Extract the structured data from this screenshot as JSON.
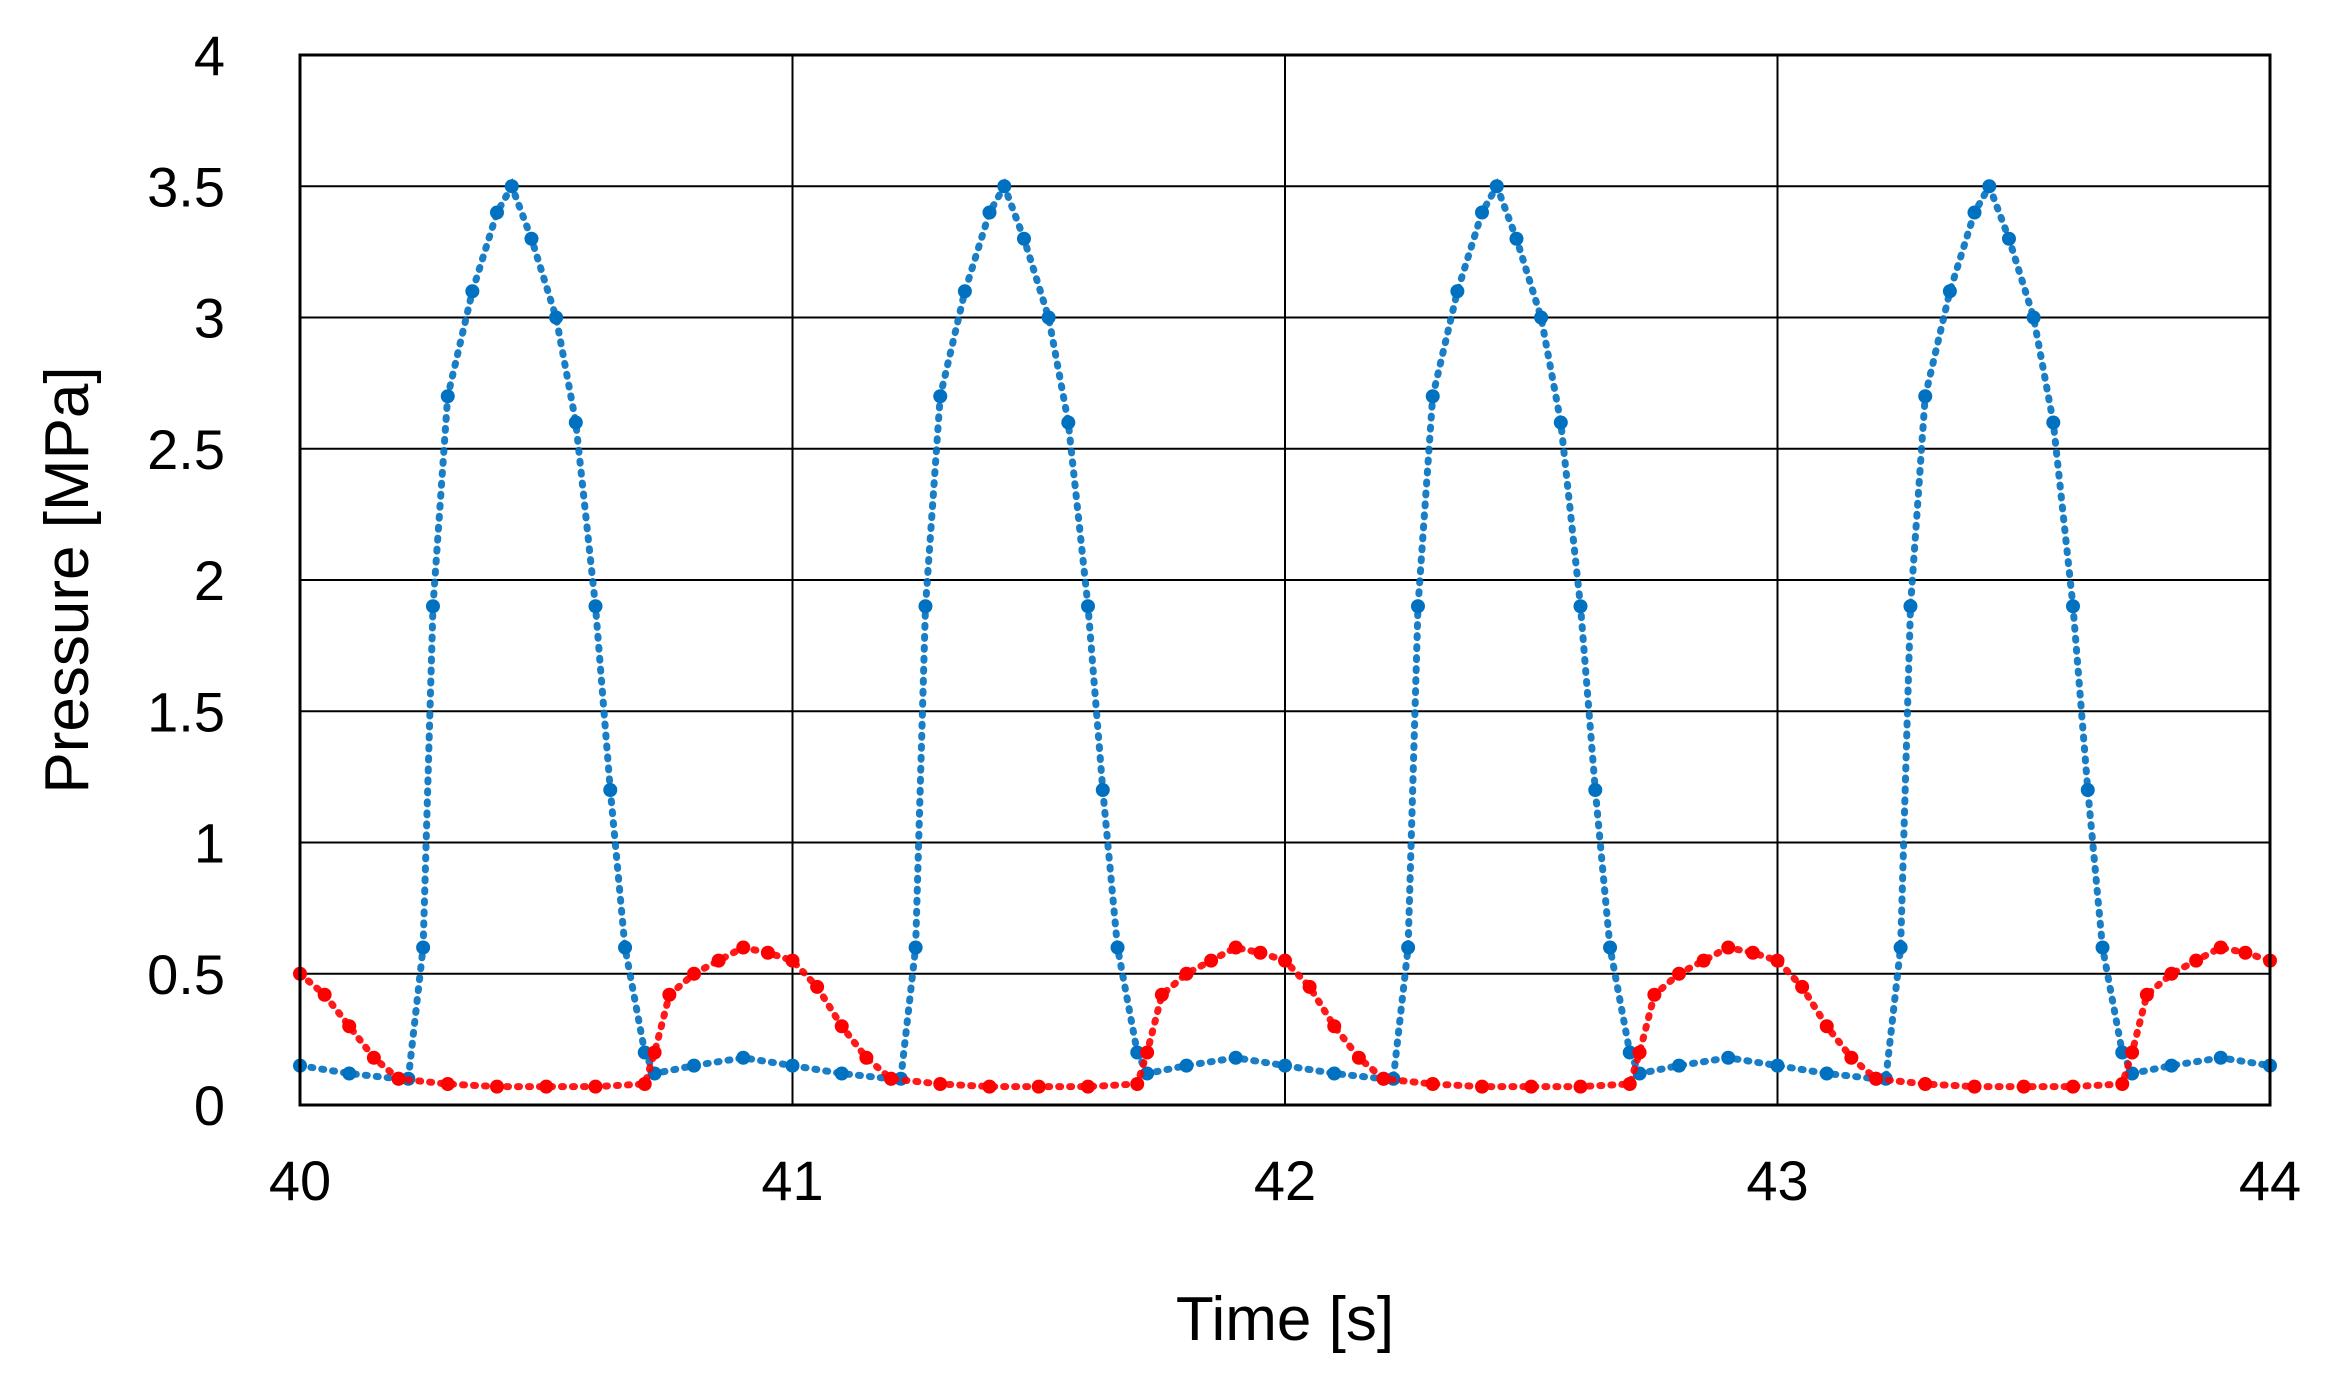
{
  "chart_data": {
    "type": "scatter",
    "title": "",
    "xlabel": "Time [s]",
    "ylabel": "Pressure [MPa]",
    "xlim": [
      40,
      44
    ],
    "ylim": [
      0,
      4
    ],
    "x_ticks": [
      40,
      41,
      42,
      43,
      44
    ],
    "y_ticks": [
      0,
      0.5,
      1,
      1.5,
      2,
      2.5,
      3,
      3.5,
      4
    ],
    "x_tick_labels": [
      "40",
      "41",
      "42",
      "43",
      "44"
    ],
    "y_tick_labels": [
      "0",
      "0.5",
      "1",
      "1.5",
      "2",
      "2.5",
      "3",
      "3.5",
      "4"
    ],
    "grid": true,
    "legend": "none",
    "series": [
      {
        "color": "#0070C0",
        "x": [
          40.0,
          40.1,
          40.2,
          40.22,
          40.25,
          40.27,
          40.3,
          40.35,
          40.4,
          40.43,
          40.47,
          40.52,
          40.56,
          40.6,
          40.63,
          40.66,
          40.7,
          40.72,
          40.8,
          40.9,
          41.0,
          41.1,
          41.2,
          41.22,
          41.25,
          41.27,
          41.3,
          41.35,
          41.4,
          41.43,
          41.47,
          41.52,
          41.56,
          41.6,
          41.63,
          41.66,
          41.7,
          41.72,
          41.8,
          41.9,
          42.0,
          42.1,
          42.2,
          42.22,
          42.25,
          42.27,
          42.3,
          42.35,
          42.4,
          42.43,
          42.47,
          42.52,
          42.56,
          42.6,
          42.63,
          42.66,
          42.7,
          42.72,
          42.8,
          42.9,
          43.0,
          43.1,
          43.2,
          43.22,
          43.25,
          43.27,
          43.3,
          43.35,
          43.4,
          43.43,
          43.47,
          43.52,
          43.56,
          43.6,
          43.63,
          43.66,
          43.7,
          43.72,
          43.8,
          43.9,
          44.0
        ],
        "y": [
          0.15,
          0.12,
          0.1,
          0.1,
          0.6,
          1.9,
          2.7,
          3.1,
          3.4,
          3.5,
          3.3,
          3.0,
          2.6,
          1.9,
          1.2,
          0.6,
          0.2,
          0.12,
          0.15,
          0.18,
          0.15,
          0.12,
          0.1,
          0.1,
          0.6,
          1.9,
          2.7,
          3.1,
          3.4,
          3.5,
          3.3,
          3.0,
          2.6,
          1.9,
          1.2,
          0.6,
          0.2,
          0.12,
          0.15,
          0.18,
          0.15,
          0.12,
          0.1,
          0.1,
          0.6,
          1.9,
          2.7,
          3.1,
          3.4,
          3.5,
          3.3,
          3.0,
          2.6,
          1.9,
          1.2,
          0.6,
          0.2,
          0.12,
          0.15,
          0.18,
          0.15,
          0.12,
          0.1,
          0.1,
          0.6,
          1.9,
          2.7,
          3.1,
          3.4,
          3.5,
          3.3,
          3.0,
          2.6,
          1.9,
          1.2,
          0.6,
          0.2,
          0.12,
          0.15,
          0.18,
          0.15
        ]
      },
      {
        "color": "#FF0000",
        "x": [
          40.0,
          40.05,
          40.1,
          40.15,
          40.2,
          40.3,
          40.4,
          40.5,
          40.6,
          40.7,
          40.72,
          40.75,
          40.8,
          40.85,
          40.9,
          40.95,
          41.0,
          41.05,
          41.1,
          41.15,
          41.2,
          41.3,
          41.4,
          41.5,
          41.6,
          41.7,
          41.72,
          41.75,
          41.8,
          41.85,
          41.9,
          41.95,
          42.0,
          42.05,
          42.1,
          42.15,
          42.2,
          42.3,
          42.4,
          42.5,
          42.6,
          42.7,
          42.72,
          42.75,
          42.8,
          42.85,
          42.9,
          42.95,
          43.0,
          43.05,
          43.1,
          43.15,
          43.2,
          43.3,
          43.4,
          43.5,
          43.6,
          43.7,
          43.72,
          43.75,
          43.8,
          43.85,
          43.9,
          43.95,
          44.0
        ],
        "y": [
          0.5,
          0.42,
          0.3,
          0.18,
          0.1,
          0.08,
          0.07,
          0.07,
          0.07,
          0.08,
          0.2,
          0.42,
          0.5,
          0.55,
          0.6,
          0.58,
          0.55,
          0.45,
          0.3,
          0.18,
          0.1,
          0.08,
          0.07,
          0.07,
          0.07,
          0.08,
          0.2,
          0.42,
          0.5,
          0.55,
          0.6,
          0.58,
          0.55,
          0.45,
          0.3,
          0.18,
          0.1,
          0.08,
          0.07,
          0.07,
          0.07,
          0.08,
          0.2,
          0.42,
          0.5,
          0.55,
          0.6,
          0.58,
          0.55,
          0.45,
          0.3,
          0.18,
          0.1,
          0.08,
          0.07,
          0.07,
          0.07,
          0.08,
          0.2,
          0.42,
          0.5,
          0.55,
          0.6,
          0.58,
          0.55
        ]
      }
    ]
  }
}
